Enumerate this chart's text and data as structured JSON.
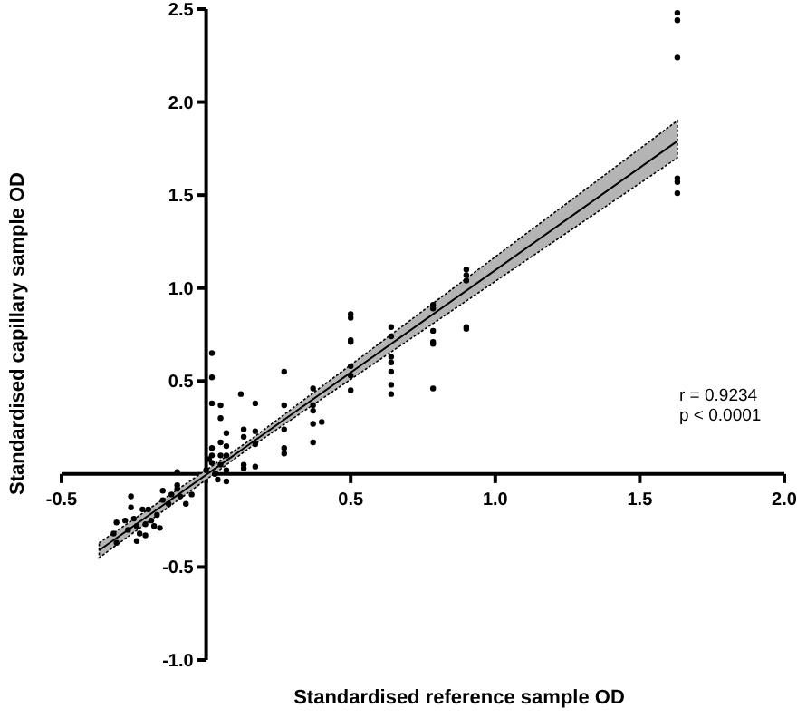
{
  "chart_data": {
    "type": "scatter",
    "xlabel": "Standardised reference sample OD",
    "ylabel": "Standardised capillary sample OD",
    "xlim": [
      -0.5,
      2.0
    ],
    "ylim": [
      -1.0,
      2.5
    ],
    "xticks": [
      -0.5,
      {
        "value": 0,
        "label": null
      },
      0.5,
      {
        "value": 1,
        "label": "1.0"
      },
      1.5,
      {
        "value": 2,
        "label": "2.0"
      }
    ],
    "yticks": [
      {
        "value": -1,
        "label": "-1.0"
      },
      -0.5,
      {
        "value": 0,
        "label": null
      },
      0.5,
      {
        "value": 1,
        "label": "1.0"
      },
      1.5,
      {
        "value": 2,
        "label": "2.0"
      },
      2.5
    ],
    "marker": "circle",
    "annotations": [
      {
        "text": "r = 0.9234"
      },
      {
        "text": "p < 0.0001"
      }
    ],
    "series": [
      {
        "type": "scatter",
        "color": "#000000",
        "x": [
          1.63,
          1.63,
          1.63,
          1.63,
          1.63,
          1.63,
          0.9,
          0.9,
          0.9,
          0.9,
          0.9,
          0.785,
          0.785,
          0.785,
          0.785,
          0.785,
          0.785,
          0.64,
          0.64,
          0.64,
          0.64,
          0.64,
          0.64,
          0.64,
          0.5,
          0.5,
          0.5,
          0.5,
          0.5,
          0.5,
          0.5,
          0.37,
          0.37,
          0.37,
          0.37,
          0.37,
          0.4,
          0.27,
          0.27,
          0.27,
          0.27,
          0.27,
          0.17,
          0.17,
          0.17,
          0.17,
          0.13,
          0.13,
          0.13,
          0.13,
          0.12,
          0.07,
          0.07,
          0.07,
          0.07,
          0.07,
          0.05,
          0.05,
          0.05,
          0.05,
          0.05,
          0.02,
          0.02,
          0.02,
          0.02,
          0.02,
          0.02,
          0.0,
          0.01,
          0.03,
          0.04,
          -0.1,
          -0.1,
          -0.31,
          -0.32,
          -0.31,
          -0.26,
          -0.26,
          -0.25,
          -0.24,
          -0.23,
          -0.21,
          -0.2,
          -0.19,
          -0.17,
          -0.16,
          -0.15,
          -0.15,
          -0.13,
          -0.12,
          -0.1,
          -0.09,
          -0.07,
          -0.05,
          -0.22,
          -0.27,
          -0.21,
          -0.18,
          -0.24,
          -0.28
        ],
        "values": [
          2.48,
          2.44,
          2.24,
          1.59,
          1.57,
          1.51,
          1.1,
          1.07,
          1.04,
          0.79,
          0.78,
          0.91,
          0.89,
          0.77,
          0.71,
          0.7,
          0.46,
          0.79,
          0.74,
          0.63,
          0.55,
          0.48,
          0.43,
          0.6,
          0.86,
          0.84,
          0.71,
          0.72,
          0.58,
          0.53,
          0.45,
          0.46,
          0.37,
          0.34,
          0.27,
          0.17,
          0.28,
          0.55,
          0.37,
          0.24,
          0.14,
          0.11,
          0.38,
          0.23,
          0.16,
          0.04,
          0.24,
          0.2,
          0.05,
          0.03,
          0.43,
          0.22,
          0.15,
          0.1,
          0.02,
          -0.04,
          0.37,
          0.3,
          0.17,
          0.1,
          0.05,
          0.65,
          0.52,
          0.38,
          0.14,
          0.1,
          0.06,
          0.02,
          0.08,
          0.0,
          -0.03,
          0.01,
          -0.06,
          -0.26,
          -0.32,
          -0.37,
          -0.12,
          -0.18,
          -0.24,
          -0.28,
          -0.32,
          -0.33,
          -0.19,
          -0.25,
          -0.22,
          -0.29,
          -0.09,
          -0.14,
          -0.16,
          -0.11,
          -0.08,
          -0.12,
          -0.16,
          -0.11,
          -0.19,
          -0.3,
          -0.27,
          -0.28,
          -0.36,
          -0.25
        ]
      },
      {
        "type": "line",
        "marker": "none",
        "color": "#000000",
        "x": [
          -0.37,
          0.15,
          1.63
        ],
        "values": [
          -0.41,
          0.16,
          1.79
        ],
        "lower": [
          -0.45,
          0.14,
          1.7
        ],
        "upper": [
          -0.37,
          0.18,
          1.9
        ]
      }
    ]
  }
}
